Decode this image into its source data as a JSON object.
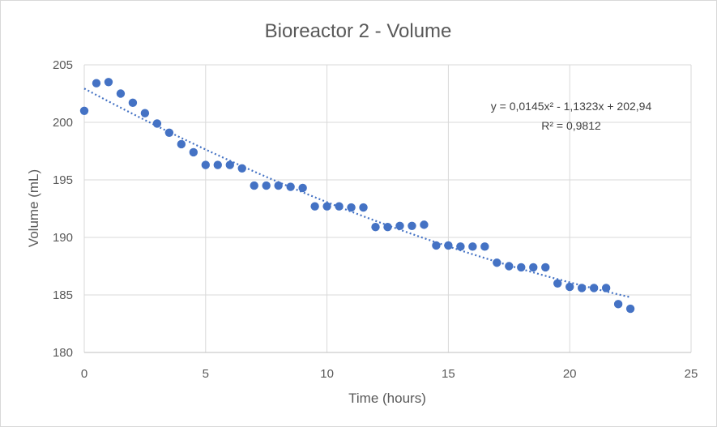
{
  "chart_data": {
    "type": "scatter",
    "title": "Bioreactor 2 - Volume",
    "xlabel": "Time (hours)",
    "ylabel": "Volume (mL)",
    "xlim": [
      0,
      25
    ],
    "ylim": [
      180,
      205
    ],
    "x_ticks": [
      0,
      5,
      10,
      15,
      20,
      25
    ],
    "y_ticks": [
      180,
      185,
      190,
      195,
      200,
      205
    ],
    "x_tick_labels": [
      "0",
      "5",
      "10",
      "15",
      "20",
      "25"
    ],
    "y_tick_labels": [
      "180",
      "185",
      "190",
      "195",
      "200",
      "205"
    ],
    "grid": true,
    "marker_color": "#4472c4",
    "trendline": {
      "type": "polynomial",
      "coefficients": [
        0.0145,
        -1.1323,
        202.94
      ],
      "x_range": [
        0,
        22.5
      ],
      "style": "dotted",
      "color": "#4472c4",
      "equation_label": "y = 0,0145x² - 1,1323x + 202,94",
      "r2_label": "R² = 0,9812"
    },
    "series": [
      {
        "points": [
          [
            0,
            201.0
          ],
          [
            0.5,
            203.4
          ],
          [
            1,
            203.5
          ],
          [
            1.5,
            202.5
          ],
          [
            2,
            201.7
          ],
          [
            2.5,
            200.8
          ],
          [
            3,
            199.9
          ],
          [
            3.5,
            199.1
          ],
          [
            4,
            198.1
          ],
          [
            4.5,
            197.4
          ],
          [
            5,
            196.3
          ],
          [
            5.5,
            196.3
          ],
          [
            6,
            196.3
          ],
          [
            6.5,
            196.0
          ],
          [
            7,
            194.5
          ],
          [
            7.5,
            194.5
          ],
          [
            8,
            194.5
          ],
          [
            8.5,
            194.4
          ],
          [
            9,
            194.3
          ],
          [
            9.5,
            192.7
          ],
          [
            10,
            192.7
          ],
          [
            10.5,
            192.7
          ],
          [
            11,
            192.6
          ],
          [
            11.5,
            192.6
          ],
          [
            12,
            190.9
          ],
          [
            12.5,
            190.9
          ],
          [
            13,
            191.0
          ],
          [
            13.5,
            191.0
          ],
          [
            14,
            191.1
          ],
          [
            14.5,
            189.3
          ],
          [
            15,
            189.3
          ],
          [
            15.5,
            189.2
          ],
          [
            16,
            189.2
          ],
          [
            16.5,
            189.2
          ],
          [
            17,
            187.8
          ],
          [
            17.5,
            187.5
          ],
          [
            18,
            187.4
          ],
          [
            18.5,
            187.4
          ],
          [
            19,
            187.4
          ],
          [
            19.5,
            186.0
          ],
          [
            20,
            185.7
          ],
          [
            20.5,
            185.6
          ],
          [
            21,
            185.6
          ],
          [
            21.5,
            185.6
          ],
          [
            22,
            184.2
          ],
          [
            22.5,
            183.8
          ]
        ]
      }
    ]
  }
}
